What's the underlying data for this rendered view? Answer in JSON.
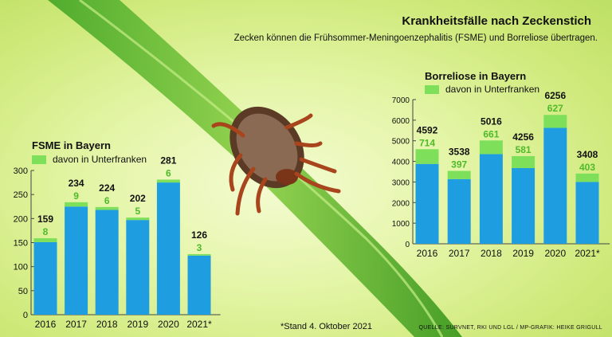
{
  "title": "Krankheitsfälle nach Zeckenstich",
  "subtitle": "Zecken können die Frühsommer-Meningoenzephalitis (FSME) und Borreliose übertragen.",
  "footnote": "*Stand 4. Oktober 2021",
  "source": "QUELLE: SURVNET, RKI UND LGL / MP-GRAFIK: HEIKE GRIGULL",
  "colors": {
    "total": "#1e9ee0",
    "unterfranken": "#7ee05a",
    "unterfranken_text": "#4fba2a",
    "axis_text": "#111111"
  },
  "fsme": {
    "title": "FSME in Bayern",
    "legend_label": "davon in Unterfranken"
  },
  "borreliose": {
    "title": "Borreliose in Bayern",
    "legend_label": "davon in Unterfranken"
  },
  "chart_data": [
    {
      "type": "bar",
      "title": "FSME in Bayern",
      "categories": [
        "2016",
        "2017",
        "2018",
        "2019",
        "2020",
        "2021*"
      ],
      "series": [
        {
          "name": "FSME in Bayern",
          "values": [
            159,
            234,
            224,
            202,
            281,
            126
          ]
        },
        {
          "name": "davon in Unterfranken",
          "values": [
            8,
            9,
            6,
            5,
            6,
            3
          ]
        }
      ],
      "yticks": [
        0,
        50,
        100,
        150,
        200,
        250,
        300
      ],
      "ylim": [
        0,
        300
      ],
      "legend": "top-left"
    },
    {
      "type": "bar",
      "title": "Borreliose in Bayern",
      "categories": [
        "2016",
        "2017",
        "2018",
        "2019",
        "2020",
        "2021*"
      ],
      "series": [
        {
          "name": "Borreliose in Bayern",
          "values": [
            4592,
            3538,
            5016,
            4256,
            6256,
            3408
          ]
        },
        {
          "name": "davon in Unterfranken",
          "values": [
            714,
            397,
            661,
            581,
            627,
            403
          ]
        }
      ],
      "yticks": [
        0,
        1000,
        2000,
        3000,
        4000,
        5000,
        6000,
        7000
      ],
      "ylim": [
        0,
        7000
      ],
      "legend": "top-left"
    }
  ]
}
